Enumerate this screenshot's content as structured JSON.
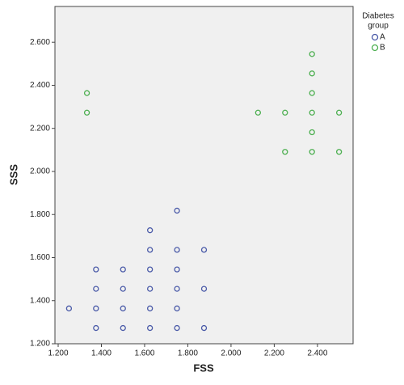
{
  "chart_data": {
    "type": "scatter",
    "x_label": "FSS",
    "y_label": "SSS",
    "legend_title": [
      "Diabetes",
      "group"
    ],
    "legend_position": "right",
    "grid": false,
    "xlim": [
      1.185,
      2.565
    ],
    "ylim": [
      1.2,
      2.766
    ],
    "xticks": [
      {
        "value": 1.2,
        "label": "1.200"
      },
      {
        "value": 1.4,
        "label": "1.400"
      },
      {
        "value": 1.6,
        "label": "1.600"
      },
      {
        "value": 1.8,
        "label": "1.800"
      },
      {
        "value": 2.0,
        "label": "2.000"
      },
      {
        "value": 2.2,
        "label": "2.200"
      },
      {
        "value": 2.4,
        "label": "2.400"
      }
    ],
    "yticks": [
      {
        "value": 1.2,
        "label": "1.200"
      },
      {
        "value": 1.4,
        "label": "1.400"
      },
      {
        "value": 1.6,
        "label": "1.600"
      },
      {
        "value": 1.8,
        "label": "1.800"
      },
      {
        "value": 2.0,
        "label": "2.000"
      },
      {
        "value": 2.2,
        "label": "2.200"
      },
      {
        "value": 2.4,
        "label": "2.400"
      },
      {
        "value": 2.6,
        "label": "2.600"
      }
    ],
    "series": [
      {
        "name": "A",
        "color": "#4a5aa8",
        "x": [
          1.375,
          1.5,
          1.625,
          1.75,
          1.875,
          1.25,
          1.375,
          1.5,
          1.625,
          1.75,
          1.375,
          1.5,
          1.625,
          1.75,
          1.875,
          1.375,
          1.5,
          1.625,
          1.75,
          1.625,
          1.75,
          1.875,
          1.625,
          1.75
        ],
        "y": [
          1.273,
          1.273,
          1.273,
          1.273,
          1.273,
          1.364,
          1.364,
          1.364,
          1.364,
          1.364,
          1.455,
          1.455,
          1.455,
          1.455,
          1.455,
          1.545,
          1.545,
          1.545,
          1.545,
          1.636,
          1.636,
          1.636,
          1.727,
          1.818
        ]
      },
      {
        "name": "B",
        "color": "#4caf50",
        "x": [
          1.333,
          1.333,
          2.125,
          2.25,
          2.25,
          2.375,
          2.375,
          2.375,
          2.375,
          2.375,
          2.375,
          2.5,
          2.5
        ],
        "y": [
          2.364,
          2.273,
          2.273,
          2.273,
          2.091,
          2.545,
          2.455,
          2.364,
          2.273,
          2.182,
          2.091,
          2.273,
          2.091
        ]
      }
    ]
  }
}
